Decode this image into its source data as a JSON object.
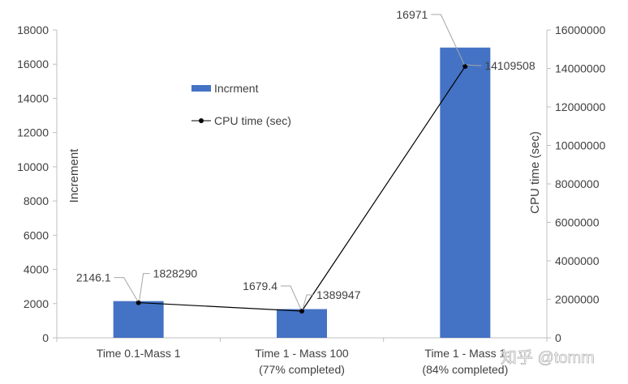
{
  "chart_data": {
    "type": "bar",
    "categories": [
      [
        "Time 0.1-Mass 1"
      ],
      [
        "Time 1 - Mass 100",
        "(77% completed)"
      ],
      [
        "Time 1 - Mass 1",
        "(84% completed)"
      ]
    ],
    "series": [
      {
        "name": "Incrment",
        "kind": "bar",
        "axis": "left",
        "color": "#4472C4",
        "values": [
          2146.1,
          1679.4,
          16971
        ],
        "labels": [
          "2146.1",
          "1679.4",
          "16971"
        ]
      },
      {
        "name": "CPU time (sec)",
        "kind": "line",
        "axis": "right",
        "color": "#000000",
        "values": [
          1828290,
          1389947,
          14109508
        ],
        "labels": [
          "1828290",
          "1389947",
          "14109508"
        ]
      }
    ],
    "ylabel": "Increment",
    "y2label": "CPU time (sec)",
    "ylim": [
      0,
      18000
    ],
    "y2lim": [
      0,
      16000000
    ],
    "yticks": [
      "0",
      "2000",
      "4000",
      "6000",
      "8000",
      "10000",
      "12000",
      "14000",
      "16000",
      "18000"
    ],
    "y2ticks": [
      "0",
      "2000000",
      "4000000",
      "6000000",
      "8000000",
      "10000000",
      "12000000",
      "14000000",
      "16000000"
    ],
    "legend_position": "top-center",
    "grid": false
  },
  "watermark": "知乎 @tomm"
}
